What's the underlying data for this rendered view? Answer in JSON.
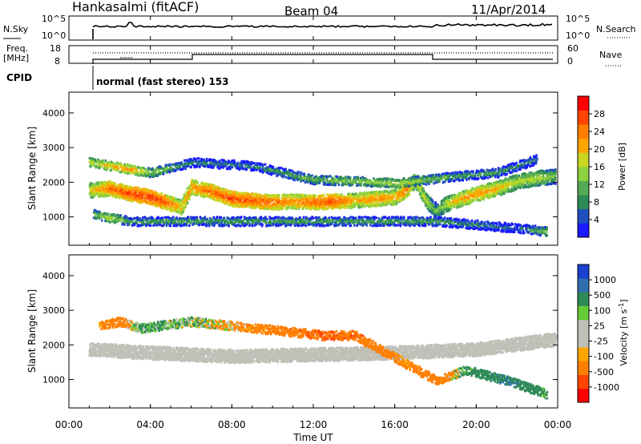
{
  "header": {
    "station": "Hankasalmi (fitACF)",
    "beam": "Beam 04",
    "date": "11/Apr/2014"
  },
  "sky_panel": {
    "left_label": "N.Sky",
    "right_label": "N.Search",
    "left_ticks": [
      "10^5",
      "10^0"
    ],
    "right_ticks": [
      "10^5",
      "10^0"
    ]
  },
  "freq_panel": {
    "left_label_line1": "Freq.",
    "left_label_line2": "[MHz]",
    "right_label": "Nave",
    "left_ticks": [
      "18",
      "8"
    ],
    "right_ticks": [
      "60",
      "0"
    ]
  },
  "cpid": {
    "label": "CPID",
    "program": "normal (fast stereo) 153"
  },
  "x_axis": {
    "label": "Time UT",
    "ticks": [
      "00:00",
      "04:00",
      "08:00",
      "12:00",
      "16:00",
      "20:00",
      "00:00"
    ]
  },
  "colors": {
    "power": [
      "#1a1aff",
      "#1f4fbf",
      "#2e8b57",
      "#55aa55",
      "#8dd13f",
      "#c8d61f",
      "#ffa500",
      "#ff7f00",
      "#ff4500",
      "#ff0000"
    ],
    "velocity": [
      "#1a3fd0",
      "#2f6fb0",
      "#2e8b57",
      "#66cc33",
      "#c0c0b8",
      "#c0c0b8",
      "#ffa500",
      "#ff7f00",
      "#ff4500",
      "#ff0000"
    ],
    "ground_scatter": "#c0c0b8"
  },
  "chart_data": [
    {
      "type": "heatmap",
      "title": "Power",
      "xlabel": "Time UT",
      "ylabel": "Slant Range [km]",
      "colorbar_label": "Power [dB]",
      "colorbar_ticks": [
        "28",
        "24",
        "20",
        "16",
        "12",
        "8",
        "4"
      ],
      "xlim": [
        0,
        24
      ],
      "ylim": [
        180,
        4600
      ],
      "yticks": [
        1000,
        2000,
        3000,
        4000
      ],
      "series": [
        {
          "name": "main",
          "points": [
            [
              1.0,
              1800,
              18
            ],
            [
              2.0,
              1850,
              24
            ],
            [
              3.0,
              1700,
              26
            ],
            [
              4.0,
              1600,
              27
            ],
            [
              4.5,
              1500,
              26
            ],
            [
              5.5,
              1300,
              20
            ],
            [
              6.0,
              1900,
              22
            ],
            [
              7.0,
              1750,
              24
            ],
            [
              8.0,
              1550,
              26
            ],
            [
              9.0,
              1500,
              25
            ],
            [
              10.0,
              1450,
              24
            ],
            [
              11.0,
              1480,
              22
            ],
            [
              12.0,
              1450,
              24
            ],
            [
              13.0,
              1480,
              26
            ],
            [
              14.0,
              1500,
              20
            ],
            [
              15.0,
              1550,
              22
            ],
            [
              16.0,
              1600,
              20
            ],
            [
              16.5,
              1800,
              24
            ],
            [
              17.0,
              2100,
              18
            ],
            [
              17.5,
              1500,
              16
            ],
            [
              18.0,
              1200,
              12
            ],
            [
              18.5,
              1400,
              16
            ],
            [
              19.0,
              1500,
              20
            ],
            [
              20.0,
              1700,
              22
            ],
            [
              21.0,
              1850,
              20
            ],
            [
              22.0,
              2050,
              16
            ],
            [
              23.0,
              2150,
              16
            ],
            [
              24.0,
              2200,
              12
            ]
          ]
        },
        {
          "name": "upper",
          "points": [
            [
              1.0,
              2600,
              16
            ],
            [
              2.0,
              2500,
              20
            ],
            [
              3.0,
              2400,
              22
            ],
            [
              4.0,
              2300,
              14
            ],
            [
              6.0,
              2600,
              8
            ],
            [
              9.0,
              2500,
              8
            ],
            [
              12.0,
              2100,
              12
            ],
            [
              14.5,
              2050,
              14
            ],
            [
              16.0,
              2000,
              16
            ],
            [
              19.0,
              2200,
              10
            ],
            [
              21.0,
              2300,
              10
            ],
            [
              23.0,
              2700,
              8
            ]
          ]
        },
        {
          "name": "near",
          "points": [
            [
              1.2,
              1100,
              12
            ],
            [
              2.0,
              1000,
              16
            ],
            [
              3.0,
              900,
              10
            ],
            [
              18.0,
              900,
              10
            ],
            [
              20.0,
              800,
              8
            ],
            [
              22.0,
              700,
              6
            ],
            [
              23.5,
              600,
              14
            ]
          ]
        }
      ]
    },
    {
      "type": "heatmap",
      "title": "Velocity",
      "xlabel": "Time UT",
      "ylabel": "Slant Range [km]",
      "colorbar_label": "Velocity [m s^-1]",
      "colorbar_ticks": [
        "1000",
        "500",
        "100",
        "25",
        "-25",
        "-100",
        "-500",
        "-1000"
      ],
      "xlim": [
        0,
        24
      ],
      "ylim": [
        180,
        4600
      ],
      "yticks": [
        1000,
        2000,
        3000,
        4000
      ],
      "series": [
        {
          "name": "ground_scatter",
          "points": [
            [
              1.0,
              1900,
              0
            ],
            [
              4.0,
              1800,
              0
            ],
            [
              8.0,
              1700,
              0
            ],
            [
              12.0,
              1750,
              0
            ],
            [
              16.0,
              1800,
              0
            ],
            [
              20.0,
              1900,
              0
            ],
            [
              24.0,
              2200,
              0
            ]
          ]
        },
        {
          "name": "ionospheric",
          "points": [
            [
              1.5,
              2600,
              -200
            ],
            [
              2.5,
              2700,
              -300
            ],
            [
              3.5,
              2500,
              150
            ],
            [
              6.0,
              2700,
              80
            ],
            [
              12.5,
              2300,
              -500
            ],
            [
              14.0,
              2300,
              -400
            ],
            [
              16.5,
              1500,
              -200
            ],
            [
              18.0,
              1000,
              -300
            ],
            [
              19.5,
              1300,
              200
            ],
            [
              21.5,
              1000,
              500
            ],
            [
              23.5,
              600,
              150
            ]
          ]
        }
      ]
    }
  ]
}
